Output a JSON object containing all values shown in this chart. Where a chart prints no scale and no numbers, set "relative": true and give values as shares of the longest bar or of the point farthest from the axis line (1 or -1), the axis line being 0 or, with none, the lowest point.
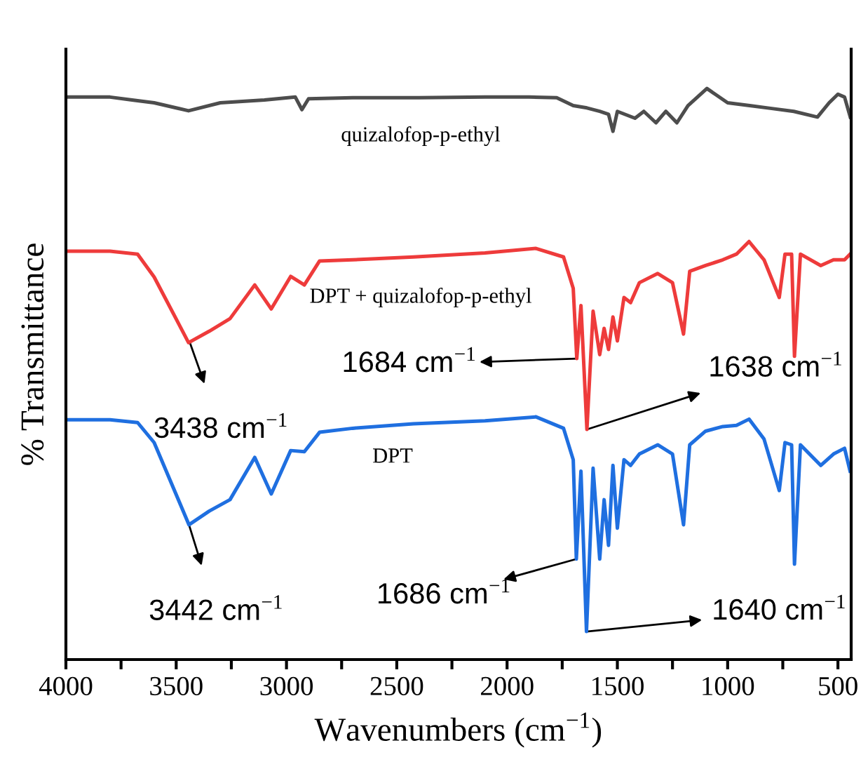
{
  "chart_data": {
    "type": "line",
    "relative": true,
    "xlabel": "Wavenumbers (cm$^{−1}$)",
    "ylabel": "% Transmittance",
    "xlim": [
      4000,
      440
    ],
    "xticks": [
      4000,
      {
        "value": 3750,
        "label": null
      },
      3500,
      {
        "value": 3250,
        "label": null
      },
      3000,
      {
        "value": 2750,
        "label": null
      },
      2500,
      {
        "value": 2250,
        "label": null
      },
      2000,
      {
        "value": 1750,
        "label": null
      },
      1500,
      {
        "value": 1250,
        "label": null
      },
      1000,
      {
        "value": 750,
        "label": null
      },
      500
    ],
    "tick_labels": "x",
    "grid": false,
    "marker": "none",
    "line_style": "solid",
    "series": [
      {
        "name": "quizalofop-p-ethyl",
        "color": "#4d4d4d",
        "x": [
          4000,
          3800,
          3700,
          3600,
          3444,
          3300,
          3100,
          2960,
          2930,
          2900,
          2700,
          2400,
          2100,
          1900,
          1775,
          1700,
          1638,
          1580,
          1540,
          1520,
          1500,
          1420,
          1380,
          1325,
          1280,
          1230,
          1180,
          1094,
          1000,
          900,
          800,
          700,
          593,
          540,
          500,
          470,
          444
        ],
        "values": [
          0.985,
          0.985,
          0.98,
          0.975,
          0.961,
          0.975,
          0.98,
          0.985,
          0.963,
          0.982,
          0.984,
          0.984,
          0.985,
          0.985,
          0.984,
          0.97,
          0.966,
          0.96,
          0.955,
          0.925,
          0.96,
          0.948,
          0.96,
          0.94,
          0.96,
          0.94,
          0.97,
          1.0,
          0.975,
          0.97,
          0.965,
          0.96,
          0.95,
          0.975,
          0.99,
          0.985,
          0.95
        ]
      },
      {
        "name": "DPT + quizalofop-p-ethyl",
        "color": "#ee3b3b",
        "x": [
          4000,
          3800,
          3675,
          3600,
          3444,
          3350,
          3256,
          3144,
          3069,
          2981,
          2919,
          2850,
          2700,
          2425,
          2100,
          1869,
          1744,
          1700,
          1684,
          1665,
          1638,
          1610,
          1580,
          1560,
          1540,
          1520,
          1500,
          1470,
          1440,
          1400,
          1317,
          1250,
          1200,
          1172,
          1100,
          1022,
          960,
          903,
          835,
          766,
          740,
          710,
          697,
          670,
          578,
          520,
          470,
          445
        ],
        "values": [
          0.715,
          0.715,
          0.71,
          0.67,
          0.555,
          0.575,
          0.597,
          0.656,
          0.614,
          0.671,
          0.656,
          0.698,
          0.7,
          0.705,
          0.712,
          0.72,
          0.705,
          0.65,
          0.527,
          0.62,
          0.403,
          0.61,
          0.534,
          0.58,
          0.543,
          0.6,
          0.558,
          0.634,
          0.625,
          0.66,
          0.676,
          0.66,
          0.57,
          0.68,
          0.69,
          0.7,
          0.71,
          0.732,
          0.7,
          0.634,
          0.71,
          0.71,
          0.531,
          0.71,
          0.69,
          0.7,
          0.7,
          0.71
        ]
      },
      {
        "name": "DPT",
        "color": "#1f6fe0",
        "x": [
          4000,
          3800,
          3675,
          3600,
          3442,
          3350,
          3256,
          3144,
          3069,
          2981,
          2919,
          2850,
          2700,
          2425,
          2100,
          1869,
          1744,
          1700,
          1686,
          1665,
          1640,
          1610,
          1580,
          1560,
          1540,
          1520,
          1500,
          1470,
          1440,
          1400,
          1317,
          1250,
          1200,
          1172,
          1100,
          1022,
          960,
          903,
          835,
          766,
          740,
          710,
          697,
          670,
          578,
          520,
          470,
          445
        ],
        "values": [
          0.42,
          0.42,
          0.415,
          0.38,
          0.236,
          0.26,
          0.28,
          0.354,
          0.29,
          0.366,
          0.364,
          0.398,
          0.405,
          0.413,
          0.418,
          0.425,
          0.405,
          0.35,
          0.176,
          0.33,
          0.049,
          0.335,
          0.176,
          0.28,
          0.2,
          0.34,
          0.23,
          0.35,
          0.34,
          0.36,
          0.376,
          0.36,
          0.236,
          0.376,
          0.4,
          0.408,
          0.41,
          0.421,
          0.386,
          0.296,
          0.38,
          0.376,
          0.167,
          0.376,
          0.34,
          0.36,
          0.37,
          0.33
        ]
      }
    ],
    "annotations": [
      {
        "text": "3438 cm$^{−1}$",
        "x": 3438,
        "y": 0.555
      },
      {
        "text": "1684 cm$^{−1}$",
        "x": 1684,
        "y": 0.527
      },
      {
        "text": "1638 cm$^{−1}$",
        "x": 1638,
        "y": 0.403
      },
      {
        "text": "3442 cm$^{−1}$",
        "x": 3442,
        "y": 0.236
      },
      {
        "text": "1686 cm$^{−1}$",
        "x": 1686,
        "y": 0.176
      },
      {
        "text": "1640 cm$^{−1}$",
        "x": 1640,
        "y": 0.049
      }
    ]
  }
}
